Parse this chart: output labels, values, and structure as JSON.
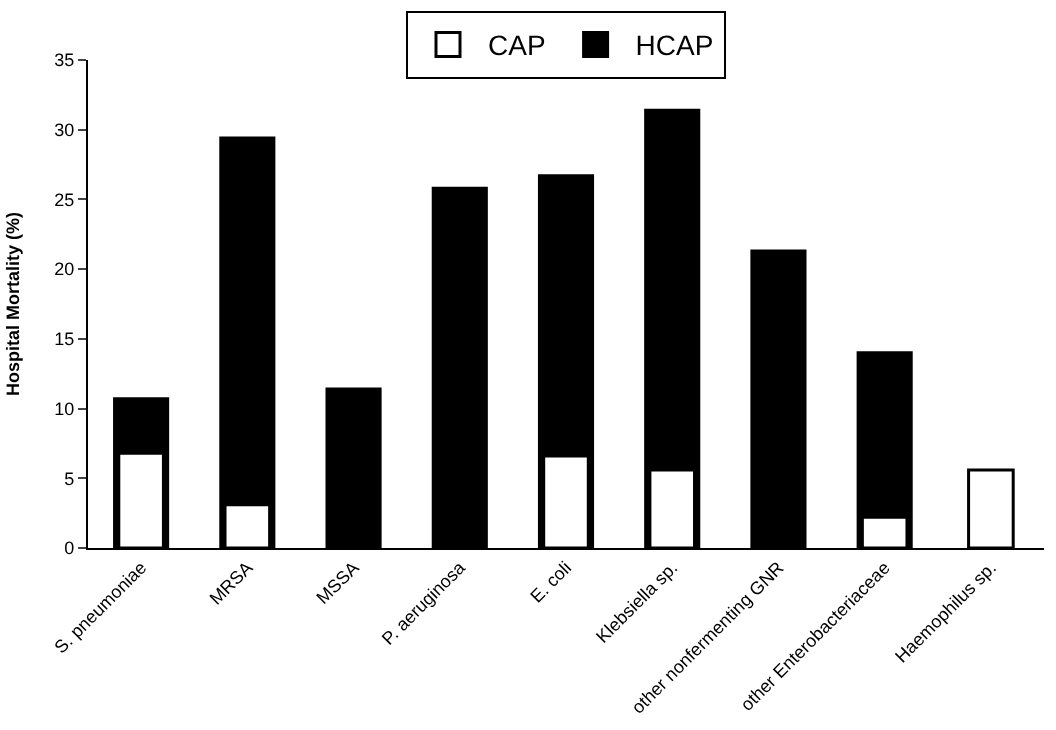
{
  "chart_data": {
    "type": "bar",
    "ylabel": "Hospital Mortality (%)",
    "categories": [
      "S. pneumoniae",
      "MRSA",
      "MSSA",
      "P. aeruginosa",
      "E. coli",
      "Klebsiella sp.",
      "other nonfermenting GNR",
      "other Enterobacteriaceae",
      "Haemophilus sp."
    ],
    "series": [
      {
        "name": "CAP",
        "color": "#ffffff",
        "values": [
          6.8,
          3.1,
          null,
          null,
          6.6,
          5.6,
          null,
          2.2,
          5.6
        ]
      },
      {
        "name": "HCAP",
        "color": "#000000",
        "values": [
          10.7,
          29.4,
          11.4,
          25.8,
          26.7,
          31.4,
          21.3,
          14.0,
          null
        ]
      }
    ],
    "ylim": [
      0,
      35
    ],
    "yticks": [
      0,
      5,
      10,
      15,
      20,
      25,
      30,
      35
    ],
    "grid": false,
    "legend": "top"
  }
}
